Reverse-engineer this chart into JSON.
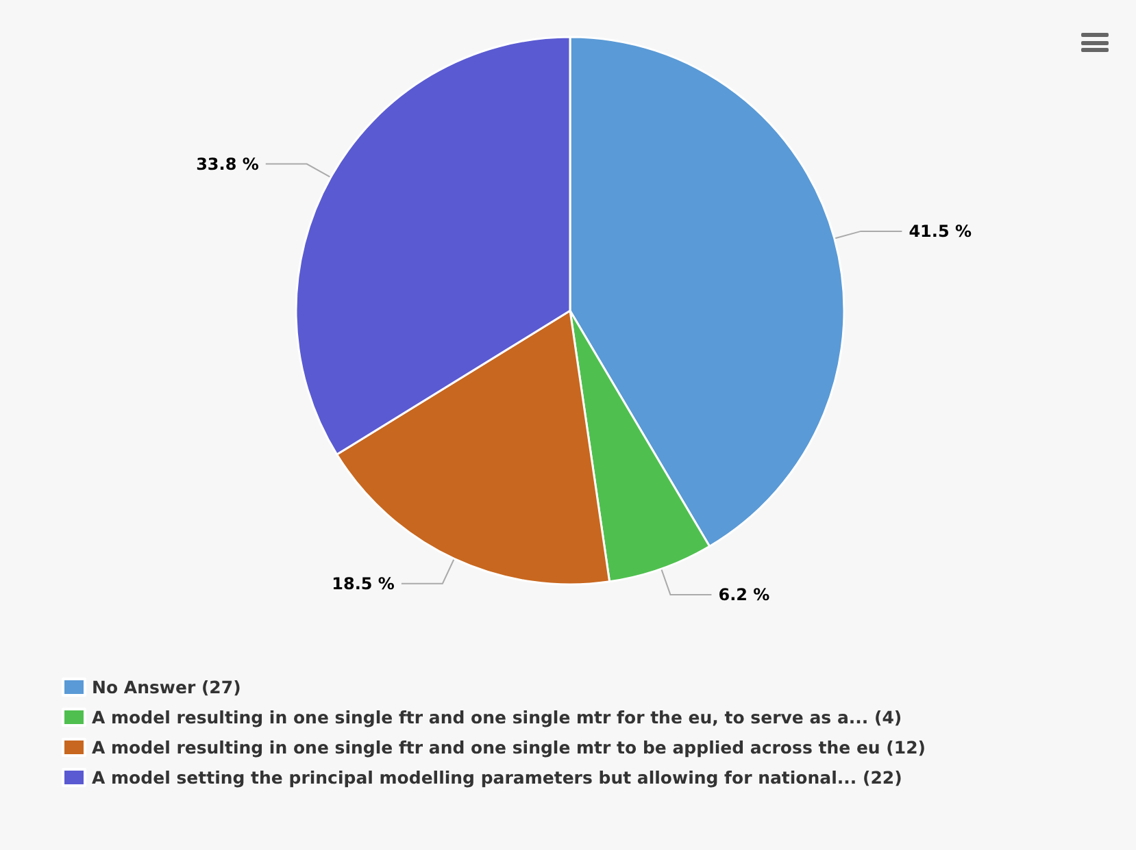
{
  "chart_data": {
    "type": "pie",
    "categories": [
      "No Answer (27)",
      "A model resulting in one single ftr and one single mtr for the eu, to serve as a... (4)",
      "A model resulting in one single ftr and one single mtr to be applied across the eu (12)",
      "A model setting the principal modelling parameters but allowing for national... (22)"
    ],
    "values": [
      41.5,
      6.2,
      18.5,
      33.8
    ],
    "value_labels": [
      "41.5 %",
      "6.2 %",
      "18.5 %",
      "33.8 %"
    ],
    "colors": [
      "#5a9ad6",
      "#4fc04f",
      "#c8671f",
      "#5a5ad2"
    ],
    "legend": "bottom"
  }
}
